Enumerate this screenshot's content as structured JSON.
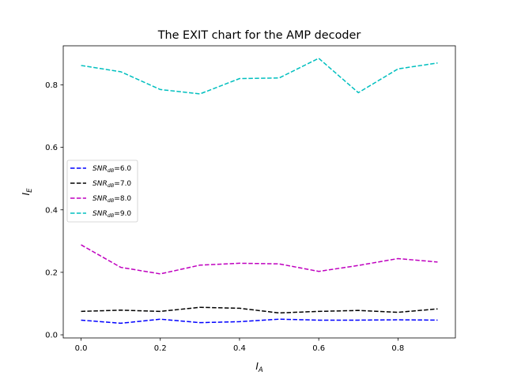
{
  "chart_data": {
    "type": "line",
    "title": "The EXIT chart for the AMP decoder",
    "xlabel_main": "I",
    "xlabel_sub": "A",
    "ylabel_main": "I",
    "ylabel_sub": "E",
    "xlim": [
      -0.045,
      0.945
    ],
    "ylim": [
      -0.01,
      0.925
    ],
    "x_ticks": [
      "0.0",
      "0.2",
      "0.4",
      "0.6",
      "0.8"
    ],
    "y_ticks": [
      "0.0",
      "0.2",
      "0.4",
      "0.6",
      "0.8"
    ],
    "legend_position": "center-left",
    "x": [
      0.0,
      0.1,
      0.2,
      0.3,
      0.4,
      0.5,
      0.6,
      0.7,
      0.8,
      0.9
    ],
    "series": [
      {
        "name_main": "SNR",
        "name_sub": "dB",
        "name_value": "=6.0",
        "color": "#0000ff",
        "values": [
          0.047,
          0.037,
          0.05,
          0.039,
          0.042,
          0.05,
          0.047,
          0.047,
          0.048,
          0.047
        ]
      },
      {
        "name_main": "SNR",
        "name_sub": "dB",
        "name_value": "=7.0",
        "color": "#000000",
        "values": [
          0.075,
          0.079,
          0.075,
          0.088,
          0.085,
          0.07,
          0.075,
          0.078,
          0.072,
          0.083
        ]
      },
      {
        "name_main": "SNR",
        "name_sub": "dB",
        "name_value": "=8.0",
        "color": "#bf00bf",
        "values": [
          0.288,
          0.216,
          0.195,
          0.223,
          0.229,
          0.227,
          0.203,
          0.222,
          0.244,
          0.233
        ]
      },
      {
        "name_main": "SNR",
        "name_sub": "dB",
        "name_value": "=9.0",
        "color": "#00bfbf",
        "values": [
          0.862,
          0.842,
          0.785,
          0.771,
          0.82,
          0.822,
          0.885,
          0.775,
          0.851,
          0.87
        ]
      }
    ]
  }
}
